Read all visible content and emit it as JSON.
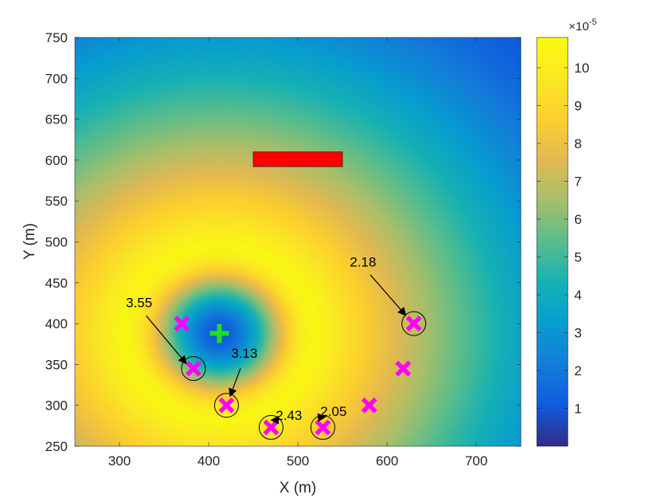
{
  "chart_data": {
    "type": "heatmap",
    "xlabel": "X (m)",
    "ylabel": "Y (m)",
    "xlim": [
      250,
      750
    ],
    "ylim": [
      250,
      750
    ],
    "x_ticks": [
      300,
      400,
      500,
      600,
      700
    ],
    "y_ticks": [
      250,
      300,
      350,
      400,
      450,
      500,
      550,
      600,
      650,
      700,
      750
    ],
    "colorbar": {
      "colormap": "parula",
      "range": [
        0,
        10.8
      ],
      "ticks": [
        1,
        2,
        3,
        4,
        5,
        6,
        7,
        8,
        9,
        10
      ],
      "multiplier_base": "×10",
      "multiplier_exponent": "-5"
    },
    "field": {
      "center": [
        412,
        388
      ],
      "peak_radius": 110,
      "peak_value": 10.5,
      "center_value": 1.0,
      "outer_value": 0.5,
      "outer_radius": 560
    },
    "source": {
      "marker": "plus",
      "color": "#22dd22",
      "x": 412,
      "y": 388
    },
    "obstacle": {
      "x": [
        450,
        550
      ],
      "y": [
        592,
        610
      ],
      "color": "#ff0000"
    },
    "markers": {
      "color": "#ff00ff",
      "points": [
        {
          "x": 370,
          "y": 400,
          "circled": false
        },
        {
          "x": 383,
          "y": 345,
          "circled": true
        },
        {
          "x": 420,
          "y": 300,
          "circled": true
        },
        {
          "x": 470,
          "y": 273,
          "circled": true
        },
        {
          "x": 528,
          "y": 273,
          "circled": true
        },
        {
          "x": 580,
          "y": 300,
          "circled": false
        },
        {
          "x": 618,
          "y": 345,
          "circled": false
        },
        {
          "x": 630,
          "y": 400,
          "circled": true
        }
      ]
    },
    "annotations": [
      {
        "text": "3.55",
        "text_x": 322,
        "text_y": 420,
        "target_x": 375,
        "target_y": 351
      },
      {
        "text": "3.13",
        "text_x": 440,
        "text_y": 358,
        "target_x": 424,
        "target_y": 311
      },
      {
        "text": "2.43",
        "text_x": 490,
        "text_y": 282,
        "target_x": 470,
        "target_y": 282
      },
      {
        "text": "2.05",
        "text_x": 540,
        "text_y": 287,
        "target_x": 531,
        "target_y": 286
      },
      {
        "text": "2.18",
        "text_x": 573,
        "text_y": 470,
        "target_x": 621,
        "target_y": 410
      }
    ]
  }
}
